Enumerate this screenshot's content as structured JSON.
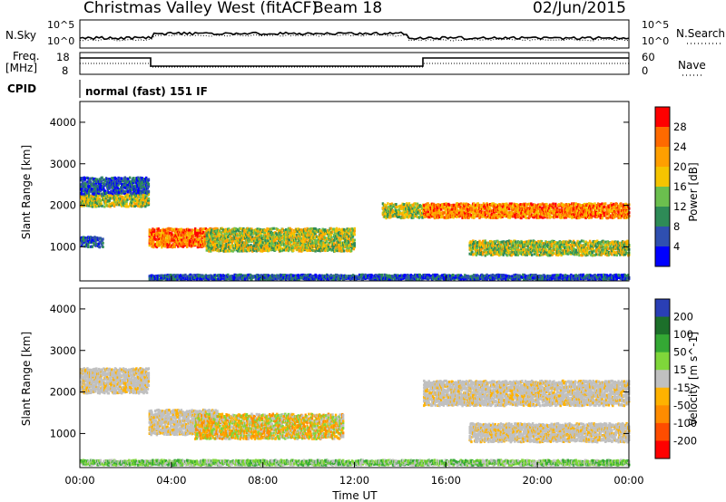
{
  "header": {
    "station": "Christmas Valley West (fitACF)",
    "beam": "Beam 18",
    "date": "02/Jun/2015"
  },
  "panels": {
    "nsky": {
      "label": "N.Sky",
      "ticks": [
        "10^5",
        "10^0"
      ]
    },
    "nsearch": {
      "label": "N.Search",
      "ticks": [
        "10^5",
        "10^0"
      ]
    },
    "freq": {
      "label_line1": "Freq.",
      "label_line2": "[MHz]",
      "ticks": [
        "18",
        "8"
      ]
    },
    "nave": {
      "label": "Nave",
      "ticks": [
        "60",
        "0"
      ]
    },
    "cpid": {
      "label": "CPID",
      "value": "normal (fast) 151 IF"
    }
  },
  "colors": {
    "power_scale": [
      "#0000ff",
      "#2f4fb0",
      "#2e8b57",
      "#6bbf4e",
      "#f5c400",
      "#ff9f00",
      "#ff6a00",
      "#ff0000"
    ],
    "velocity_scale": [
      "#2a3fb5",
      "#1c6f2a",
      "#34a834",
      "#7fd63a",
      "#c0c0c0",
      "#ffb200",
      "#ff8c00",
      "#ff4d00",
      "#ff0000"
    ]
  },
  "chart_data": [
    {
      "type": "heatmap",
      "title": "",
      "xlabel": "",
      "ylabel": "Slant Range [km]",
      "xlim": [
        "00:00",
        "00:00"
      ],
      "ylim": [
        180,
        4500
      ],
      "y_ticks": [
        "1000",
        "2000",
        "3000",
        "4000"
      ],
      "colorbar": {
        "label": "Power [dB]",
        "ticks": [
          "4",
          "8",
          "12",
          "16",
          "20",
          "24",
          "28"
        ]
      },
      "bands": [
        {
          "t_start_h": 0.0,
          "t_end_h": 3.0,
          "range_center_km": 2150,
          "range_width_km": 300,
          "level": "medium"
        },
        {
          "t_start_h": 0.0,
          "t_end_h": 3.0,
          "range_center_km": 2500,
          "range_width_km": 400,
          "level": "low"
        },
        {
          "t_start_h": 0.0,
          "t_end_h": 1.0,
          "range_center_km": 1150,
          "range_width_km": 250,
          "level": "low"
        },
        {
          "t_start_h": 3.0,
          "t_end_h": 6.0,
          "range_center_km": 1250,
          "range_width_km": 450,
          "level": "high"
        },
        {
          "t_start_h": 5.5,
          "t_end_h": 12.0,
          "range_center_km": 1200,
          "range_width_km": 550,
          "level": "medium"
        },
        {
          "t_start_h": 13.2,
          "t_end_h": 15.0,
          "range_center_km": 1900,
          "range_width_km": 350,
          "level": "medium"
        },
        {
          "t_start_h": 15.0,
          "t_end_h": 24.0,
          "range_center_km": 1900,
          "range_width_km": 350,
          "level": "high"
        },
        {
          "t_start_h": 17.0,
          "t_end_h": 24.0,
          "range_center_km": 1000,
          "range_width_km": 350,
          "level": "medium"
        },
        {
          "t_start_h": 3.0,
          "t_end_h": 24.0,
          "range_center_km": 300,
          "range_width_km": 120,
          "level": "low"
        }
      ]
    },
    {
      "type": "heatmap",
      "title": "",
      "xlabel": "Time UT",
      "ylabel": "Slant Range [km]",
      "xlim": [
        "00:00",
        "00:00"
      ],
      "ylim": [
        180,
        4500
      ],
      "x_ticks": [
        "00:00",
        "04:00",
        "08:00",
        "12:00",
        "16:00",
        "20:00",
        "00:00"
      ],
      "y_ticks": [
        "1000",
        "2000",
        "3000",
        "4000"
      ],
      "colorbar": {
        "label": "Velocity [m s^-1]",
        "ticks": [
          "200",
          "100",
          "50",
          "15",
          "-15",
          "-50",
          "-100",
          "-200"
        ]
      },
      "bands": [
        {
          "t_start_h": 0.0,
          "t_end_h": 3.0,
          "range_center_km": 2300,
          "range_width_km": 600,
          "level": "near-zero"
        },
        {
          "t_start_h": 3.0,
          "t_end_h": 6.0,
          "range_center_km": 1300,
          "range_width_km": 600,
          "level": "near-zero"
        },
        {
          "t_start_h": 5.0,
          "t_end_h": 11.5,
          "range_center_km": 1200,
          "range_width_km": 600,
          "level": "negative"
        },
        {
          "t_start_h": 15.0,
          "t_end_h": 24.0,
          "range_center_km": 2000,
          "range_width_km": 600,
          "level": "near-zero"
        },
        {
          "t_start_h": 17.0,
          "t_end_h": 24.0,
          "range_center_km": 1050,
          "range_width_km": 450,
          "level": "near-zero"
        },
        {
          "t_start_h": 0.0,
          "t_end_h": 24.0,
          "range_center_km": 330,
          "range_width_km": 120,
          "level": "positive"
        }
      ]
    }
  ]
}
